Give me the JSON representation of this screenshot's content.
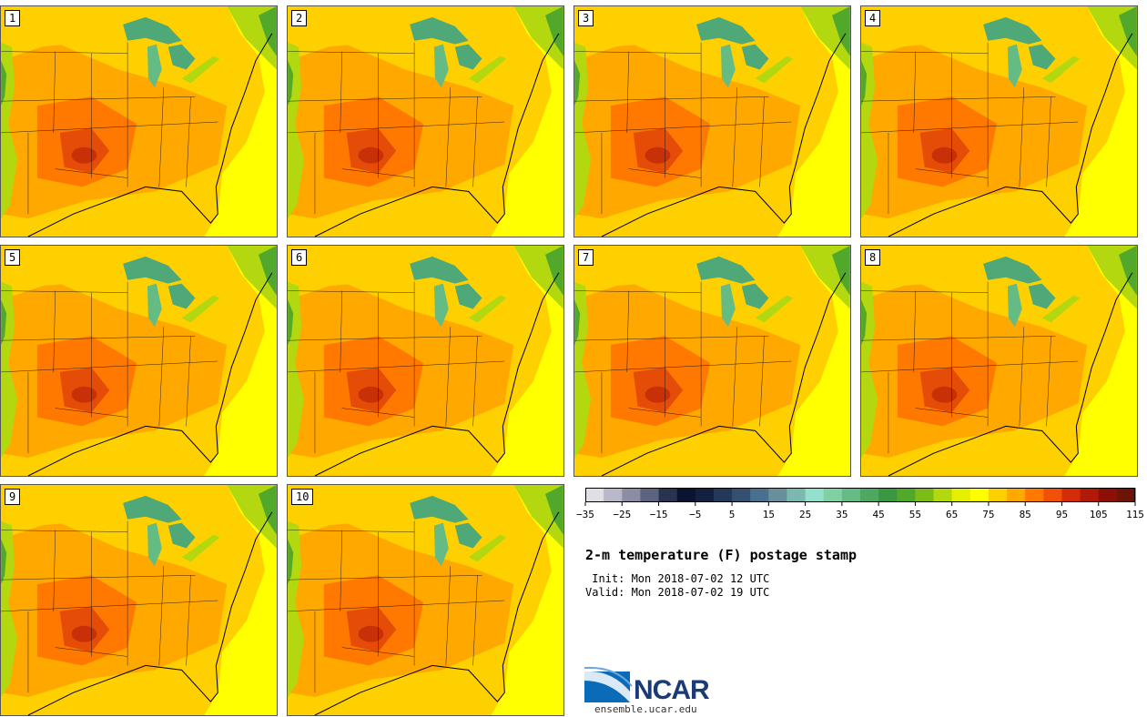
{
  "panels": [
    {
      "label": "1"
    },
    {
      "label": "2"
    },
    {
      "label": "3"
    },
    {
      "label": "4"
    },
    {
      "label": "5"
    },
    {
      "label": "6"
    },
    {
      "label": "7"
    },
    {
      "label": "8"
    },
    {
      "label": "9"
    },
    {
      "label": "10"
    }
  ],
  "colorbar": {
    "colors": [
      "#e0e0e4",
      "#b8b8c8",
      "#8c8ca4",
      "#5c6480",
      "#283450",
      "#0a1430",
      "#142040",
      "#24385a",
      "#345070",
      "#4a7090",
      "#68909c",
      "#7cb8b0",
      "#94e0cc",
      "#80d0a4",
      "#64bc84",
      "#4ea860",
      "#3a9840",
      "#52a82a",
      "#7cbc18",
      "#b4d810",
      "#e4f000",
      "#ffff00",
      "#ffd000",
      "#ffa800",
      "#ff7800",
      "#f05008",
      "#d42c08",
      "#b01a08",
      "#8c1008",
      "#6c1408"
    ],
    "tick_labels": [
      "−35",
      "−25",
      "−15",
      "−5",
      "5",
      "15",
      "25",
      "35",
      "45",
      "55",
      "65",
      "75",
      "85",
      "95",
      "105",
      "115"
    ]
  },
  "title": "2-m temperature (F) postage stamp",
  "init": " Init: Mon 2018-07-02 12 UTC",
  "valid": "Valid: Mon 2018-07-02 19 UTC",
  "logo": {
    "text": "NCAR",
    "url": "ensemble.ucar.edu"
  }
}
